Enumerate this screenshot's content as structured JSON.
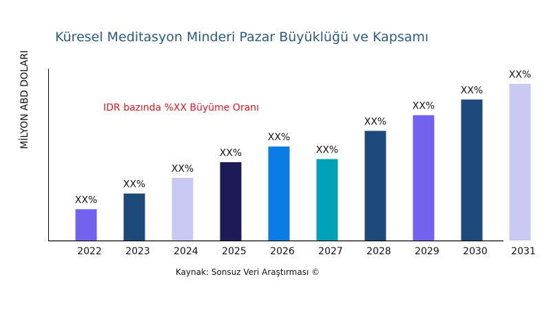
{
  "chart_data": {
    "type": "bar",
    "title": "Küresel Meditasyon Minderi Pazar Büyüklüğü ve Kapsamı",
    "xlabel": "",
    "ylabel": "MİLYON ABD DOLARI",
    "annotation": "IDR bazında %XX Büyüme Oranı",
    "source": "Kaynak: Sonsuz Veri Araştırması ©",
    "categories": [
      "2022",
      "2023",
      "2024",
      "2025",
      "2026",
      "2027",
      "2028",
      "2029",
      "2030",
      "2031"
    ],
    "values": [
      20,
      30,
      40,
      50,
      60,
      52,
      70,
      80,
      90,
      100
    ],
    "data_labels": [
      "XX%",
      "XX%",
      "XX%",
      "XX%",
      "XX%",
      "XX%",
      "XX%",
      "XX%",
      "XX%",
      "XX%"
    ],
    "bar_colors": [
      "#7262f0",
      "#1d4a7a",
      "#c8c8f0",
      "#1e1a58",
      "#0b7be6",
      "#00a1b8",
      "#1d4a7a",
      "#7262f0",
      "#1d4a7a",
      "#c8c8f0"
    ],
    "ylim": [
      0,
      100
    ],
    "grid": false,
    "colors": {
      "title": "#2b5a85",
      "annotation": "#e8141c"
    }
  }
}
